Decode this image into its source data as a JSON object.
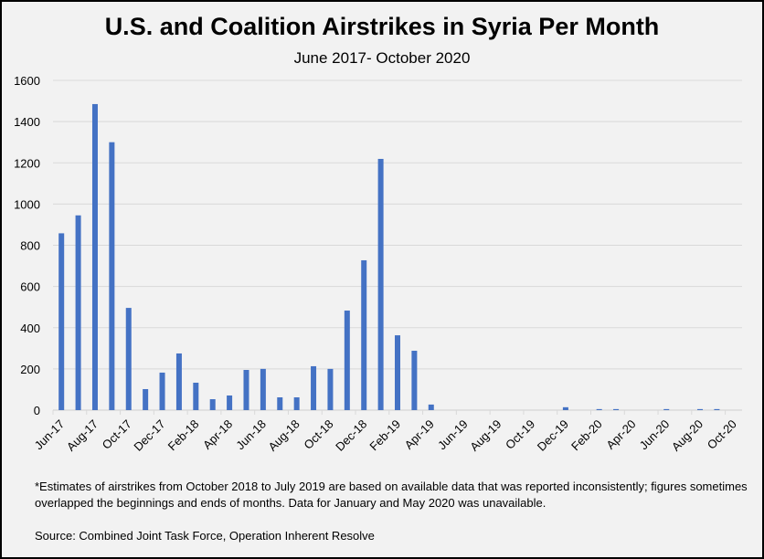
{
  "chart_data": {
    "type": "bar",
    "title": "U.S. and Coalition Airstrikes in Syria Per Month",
    "subtitle": "June 2017- October 2020",
    "ylim": [
      0,
      1600
    ],
    "yticks": [
      0,
      200,
      400,
      600,
      800,
      1000,
      1200,
      1400,
      1600
    ],
    "grid": true,
    "bar_color": "#4472c4",
    "categories": [
      "Jun-17",
      "Jul-17",
      "Aug-17",
      "Sep-17",
      "Oct-17",
      "Nov-17",
      "Dec-17",
      "Jan-18",
      "Feb-18",
      "Mar-18",
      "Apr-18",
      "May-18",
      "Jun-18",
      "Jul-18",
      "Aug-18",
      "Sep-18",
      "Oct-18",
      "Nov-18",
      "Dec-18",
      "Jan-19",
      "Feb-19",
      "Mar-19",
      "Apr-19",
      "May-19",
      "Jun-19",
      "Jul-19",
      "Aug-19",
      "Sep-19",
      "Oct-19",
      "Nov-19",
      "Dec-19",
      "Jan-20",
      "Feb-20",
      "Mar-20",
      "Apr-20",
      "May-20",
      "Jun-20",
      "Jul-20",
      "Aug-20",
      "Sep-20",
      "Oct-20"
    ],
    "tick_labels": [
      "Jun-17",
      "Aug-17",
      "Oct-17",
      "Dec-17",
      "Feb-18",
      "Apr-18",
      "Jun-18",
      "Aug-18",
      "Oct-18",
      "Dec-18",
      "Feb-19",
      "Apr-19",
      "Jun-19",
      "Aug-19",
      "Oct-19",
      "Dec-19",
      "Feb-20",
      "Apr-20",
      "Jun-20",
      "Aug-20",
      "Oct-20"
    ],
    "values": [
      858,
      945,
      1485,
      1300,
      496,
      102,
      182,
      275,
      133,
      53,
      71,
      195,
      200,
      62,
      62,
      213,
      200,
      483,
      727,
      1219,
      363,
      288,
      27,
      0,
      0,
      0,
      0,
      0,
      0,
      0,
      14,
      null,
      5,
      5,
      0,
      null,
      5,
      0,
      5,
      5,
      0
    ]
  },
  "notes": {
    "footnote": "*Estimates of airstrikes from October 2018 to July 2019  are based on available data that was reported inconsistently; figures sometimes overlapped the beginnings and ends of months. Data for January and May 2020  was unavailable.",
    "source": "Source: Combined Joint Task Force, Operation Inherent Resolve"
  }
}
